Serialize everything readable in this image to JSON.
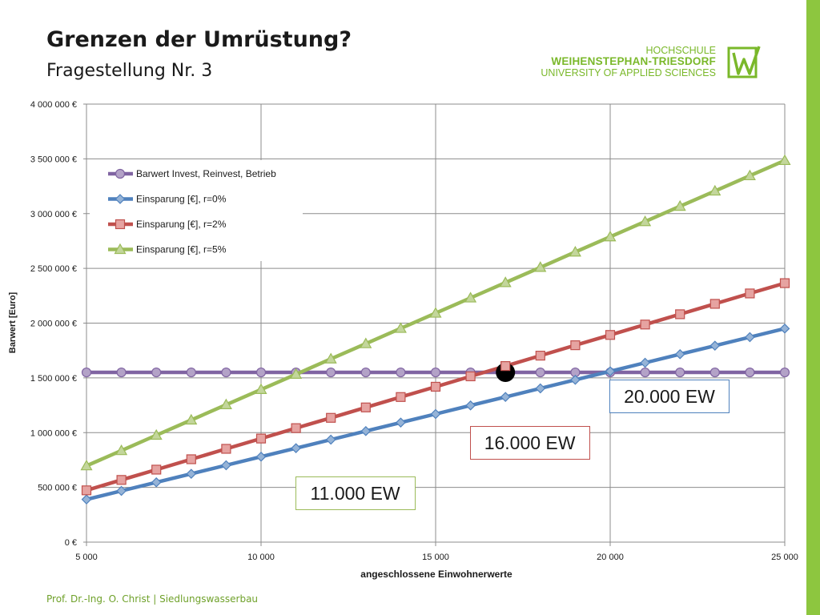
{
  "slide": {
    "title": "Grenzen der Umrüstung?",
    "subtitle": "Fragestellung Nr. 3",
    "footer": "Prof. Dr.-Ing. O. Christ | Siedlungswasserbau",
    "accent_color": "#8dc63f"
  },
  "logo": {
    "line1": "HOCHSCHULE",
    "line2": "WEIHENSTEPHAN-TRIESDORF",
    "line3": "UNIVERSITY OF APPLIED SCIENCES",
    "icon": "hswt-logo-icon",
    "color": "#7ab82a"
  },
  "chart_data": {
    "type": "line",
    "title": "",
    "xlabel": "angeschlossene Einwohnerwerte",
    "ylabel": "Barwert [Euro]",
    "xlim": [
      5000,
      25000
    ],
    "ylim": [
      0,
      4000000
    ],
    "x_ticks": [
      {
        "value": 5000,
        "label": "5 000"
      },
      {
        "value": 10000,
        "label": "10 000"
      },
      {
        "value": 15000,
        "label": "15 000"
      },
      {
        "value": 20000,
        "label": "20 000"
      },
      {
        "value": 25000,
        "label": "25 000"
      }
    ],
    "y_ticks": [
      {
        "value": 0,
        "label": "0 €"
      },
      {
        "value": 500000,
        "label": "500 000 €"
      },
      {
        "value": 1000000,
        "label": "1 000 000 €"
      },
      {
        "value": 1500000,
        "label": "1 500 000 €"
      },
      {
        "value": 2000000,
        "label": "2 000 000 €"
      },
      {
        "value": 2500000,
        "label": "2 500 000 €"
      },
      {
        "value": 3000000,
        "label": "3 000 000 €"
      },
      {
        "value": 3500000,
        "label": "3 500 000 €"
      },
      {
        "value": 4000000,
        "label": "4 000 000 €"
      }
    ],
    "grid": true,
    "legend_position": "top-left",
    "x": [
      5000,
      6000,
      7000,
      8000,
      9000,
      10000,
      11000,
      12000,
      13000,
      14000,
      15000,
      16000,
      17000,
      18000,
      19000,
      20000,
      21000,
      22000,
      23000,
      24000,
      25000
    ],
    "series": [
      {
        "name": "Barwert Invest, Reinvest, Betrieb",
        "color": "#8064a2",
        "fill": "#b3a2c7",
        "marker": "circle",
        "values": [
          1550000,
          1550000,
          1550000,
          1550000,
          1550000,
          1550000,
          1550000,
          1550000,
          1550000,
          1550000,
          1550000,
          1550000,
          1550000,
          1550000,
          1550000,
          1550000,
          1550000,
          1550000,
          1550000,
          1550000,
          1550000
        ]
      },
      {
        "name": "Einsparung [€], r=0%",
        "color": "#4f81bd",
        "fill": "#95b3d7",
        "marker": "diamond",
        "values": [
          390000,
          468000,
          546000,
          624000,
          702000,
          780000,
          858000,
          936000,
          1014000,
          1092000,
          1170000,
          1248000,
          1326000,
          1404000,
          1482000,
          1560000,
          1638000,
          1716000,
          1794000,
          1872000,
          1950000
        ]
      },
      {
        "name": "Einsparung [€], r=2%",
        "color": "#c0504d",
        "fill": "#e6a3a1",
        "marker": "square",
        "values": [
          473000,
          568000,
          662000,
          757000,
          852000,
          946000,
          1041000,
          1135000,
          1230000,
          1325000,
          1419000,
          1514000,
          1608000,
          1703000,
          1798000,
          1892000,
          1987000,
          2081000,
          2176000,
          2271000,
          2365000
        ]
      },
      {
        "name": "Einsparung [€], r=5%",
        "color": "#9bbb59",
        "fill": "#c3d69b",
        "marker": "triangle",
        "values": [
          697000,
          836000,
          976000,
          1115000,
          1255000,
          1394000,
          1533000,
          1673000,
          1812000,
          1952000,
          2091000,
          2230000,
          2370000,
          2509000,
          2649000,
          2788000,
          2927000,
          3067000,
          3206000,
          3346000,
          3485000
        ]
      }
    ],
    "marked_point": {
      "x": 17000,
      "y": 1550000
    },
    "annotations": [
      {
        "text": "11.000 EW",
        "border": "#9bbb59"
      },
      {
        "text": "16.000 EW",
        "border": "#c0504d"
      },
      {
        "text": "20.000 EW",
        "border": "#4f81bd"
      }
    ]
  }
}
